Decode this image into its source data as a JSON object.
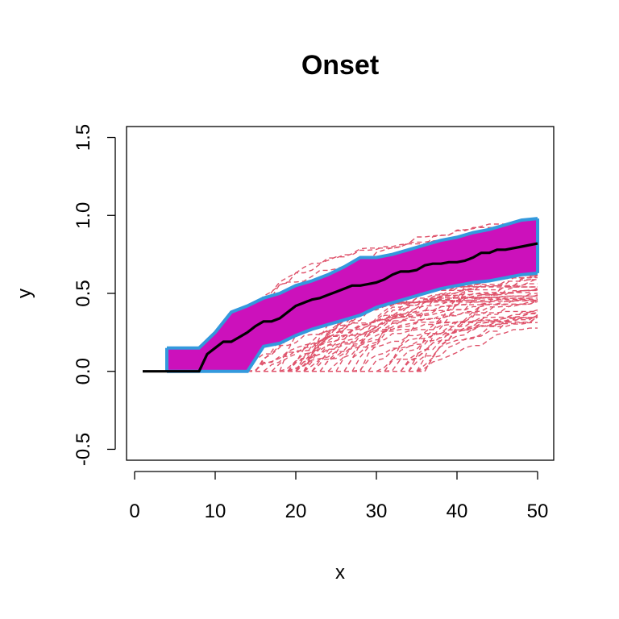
{
  "chart_data": {
    "type": "line",
    "title": "Onset",
    "xlabel": "x",
    "ylabel": "y",
    "xlim": [
      -1,
      52
    ],
    "ylim": [
      -0.57,
      1.57
    ],
    "x_ticks": [
      0,
      10,
      20,
      30,
      40,
      50
    ],
    "y_ticks": [
      -0.5,
      0.0,
      0.5,
      1.0,
      1.5
    ],
    "x_tick_labels": [
      "0",
      "10",
      "20",
      "30",
      "40",
      "50"
    ],
    "y_tick_labels": [
      "-0.5",
      "0.0",
      "0.5",
      "1.0",
      "1.5"
    ],
    "grid": false,
    "colors": {
      "band_fill": "#CC11BB",
      "band_border": "#3399DD",
      "sample_lines": "#DF536B",
      "mean_line": "#000000"
    },
    "band": {
      "x": [
        4,
        5,
        8,
        10,
        12,
        14,
        16,
        18,
        20,
        22,
        24,
        26,
        28,
        30,
        32,
        34,
        36,
        38,
        40,
        42,
        44,
        46,
        48,
        50
      ],
      "upper": [
        0.15,
        0.15,
        0.15,
        0.25,
        0.38,
        0.42,
        0.47,
        0.5,
        0.55,
        0.58,
        0.62,
        0.67,
        0.73,
        0.73,
        0.75,
        0.78,
        0.81,
        0.84,
        0.86,
        0.89,
        0.91,
        0.94,
        0.97,
        0.98
      ],
      "lower": [
        0.0,
        0.0,
        0.0,
        0.0,
        0.0,
        0.0,
        0.16,
        0.18,
        0.23,
        0.27,
        0.3,
        0.33,
        0.36,
        0.41,
        0.44,
        0.47,
        0.5,
        0.53,
        0.55,
        0.57,
        0.58,
        0.6,
        0.62,
        0.63
      ]
    },
    "mean": {
      "x": [
        1,
        4,
        8,
        9,
        10,
        11,
        12,
        13,
        14,
        15,
        16,
        17,
        18,
        19,
        20,
        21,
        22,
        23,
        24,
        25,
        26,
        27,
        28,
        29,
        30,
        31,
        32,
        33,
        34,
        35,
        36,
        37,
        38,
        39,
        40,
        41,
        42,
        43,
        44,
        45,
        46,
        47,
        48,
        49,
        50
      ],
      "y": [
        0.0,
        0.0,
        0.0,
        0.11,
        0.15,
        0.19,
        0.19,
        0.22,
        0.25,
        0.29,
        0.32,
        0.32,
        0.34,
        0.38,
        0.42,
        0.44,
        0.46,
        0.47,
        0.49,
        0.51,
        0.53,
        0.55,
        0.55,
        0.56,
        0.57,
        0.59,
        0.62,
        0.64,
        0.64,
        0.65,
        0.68,
        0.69,
        0.69,
        0.7,
        0.7,
        0.71,
        0.73,
        0.76,
        0.76,
        0.78,
        0.78,
        0.79,
        0.8,
        0.81,
        0.82
      ]
    },
    "sample_count": 60
  }
}
